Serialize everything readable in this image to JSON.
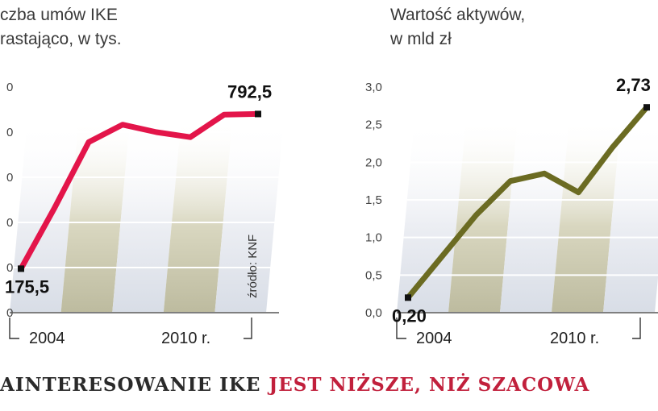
{
  "headline": {
    "part1": "AINTERESOWANIE IKE",
    "part2": "JEST NIŻSZE, NIŻ SZACOWA",
    "part1_color": "#2a2a2a",
    "part2_color": "#c1203c"
  },
  "chart_data": [
    {
      "type": "line",
      "title_lines": [
        "czba umów IKE",
        "rastająco, w tys."
      ],
      "source": "źródło: KNF",
      "line_color": "#e3154a",
      "x": [
        2004,
        2005,
        2006,
        2007,
        2008,
        2009,
        2010,
        2011
      ],
      "values": [
        175.5,
        420,
        680,
        750,
        720,
        700,
        790,
        792.5
      ],
      "ylim": [
        0,
        900
      ],
      "yticks": [
        "0",
        "0",
        "0",
        "0",
        "0",
        "0"
      ],
      "x_tick_labels": [
        "2004",
        "2010 r."
      ],
      "start_label": "175,5",
      "end_label": "792,5",
      "grid": true
    },
    {
      "type": "line",
      "title_lines": [
        "Wartość aktywów,",
        "w mld zł"
      ],
      "line_color": "#6b6b22",
      "x": [
        2004,
        2005,
        2006,
        2007,
        2008,
        2009,
        2010,
        2011
      ],
      "values": [
        0.2,
        0.75,
        1.3,
        1.75,
        1.85,
        1.6,
        2.2,
        2.73
      ],
      "ylim": [
        0,
        3.0
      ],
      "yticks": [
        "0,0",
        "0,5",
        "1,0",
        "1,5",
        "2,0",
        "2,5",
        "3,0"
      ],
      "x_tick_labels": [
        "2004",
        "2010 r."
      ],
      "start_label": "0,20",
      "end_label": "2,73",
      "grid": true
    }
  ]
}
